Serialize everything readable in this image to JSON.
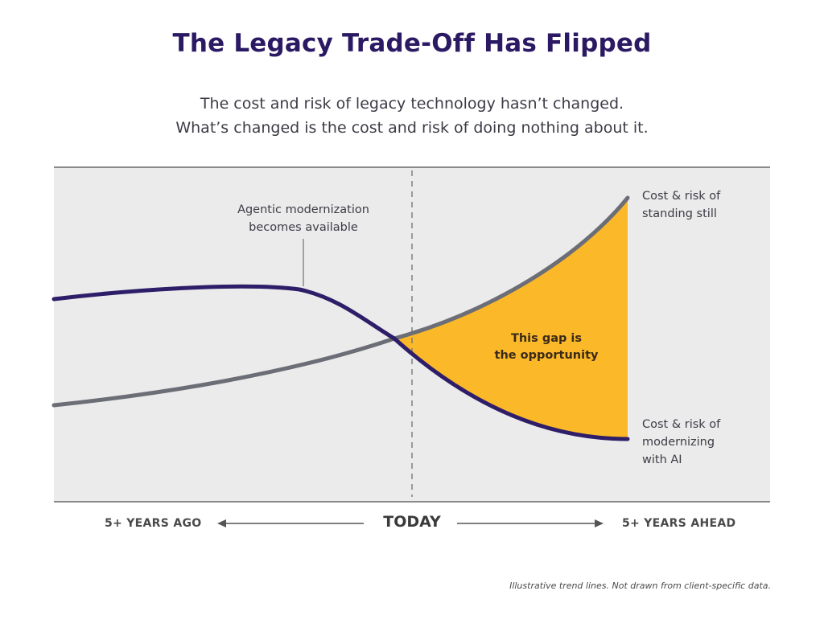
{
  "title": "The Legacy Trade-Off Has Flipped",
  "subtitle_line1": "The cost and risk of legacy technology hasn’t changed.",
  "subtitle_line2": "What’s changed is the cost and risk of doing nothing about it.",
  "annotation": {
    "line1": "Agentic modernization",
    "line2": "becomes available"
  },
  "gap_label": {
    "line1": "This gap is",
    "line2": "the opportunity"
  },
  "series": {
    "standing_still": {
      "line1": "Cost & risk of",
      "line2": "standing still",
      "color": "#6b6e76"
    },
    "modernizing": {
      "line1": "Cost & risk of",
      "line2": "modernizing",
      "line3": "with AI",
      "color": "#2e1d68"
    }
  },
  "gap_color": "#fbb829",
  "axis": {
    "left": "5+ YEARS AGO",
    "center": "TODAY",
    "right": "5+ YEARS AHEAD"
  },
  "footnote": "Illustrative trend lines. Not drawn from client-specific data."
}
